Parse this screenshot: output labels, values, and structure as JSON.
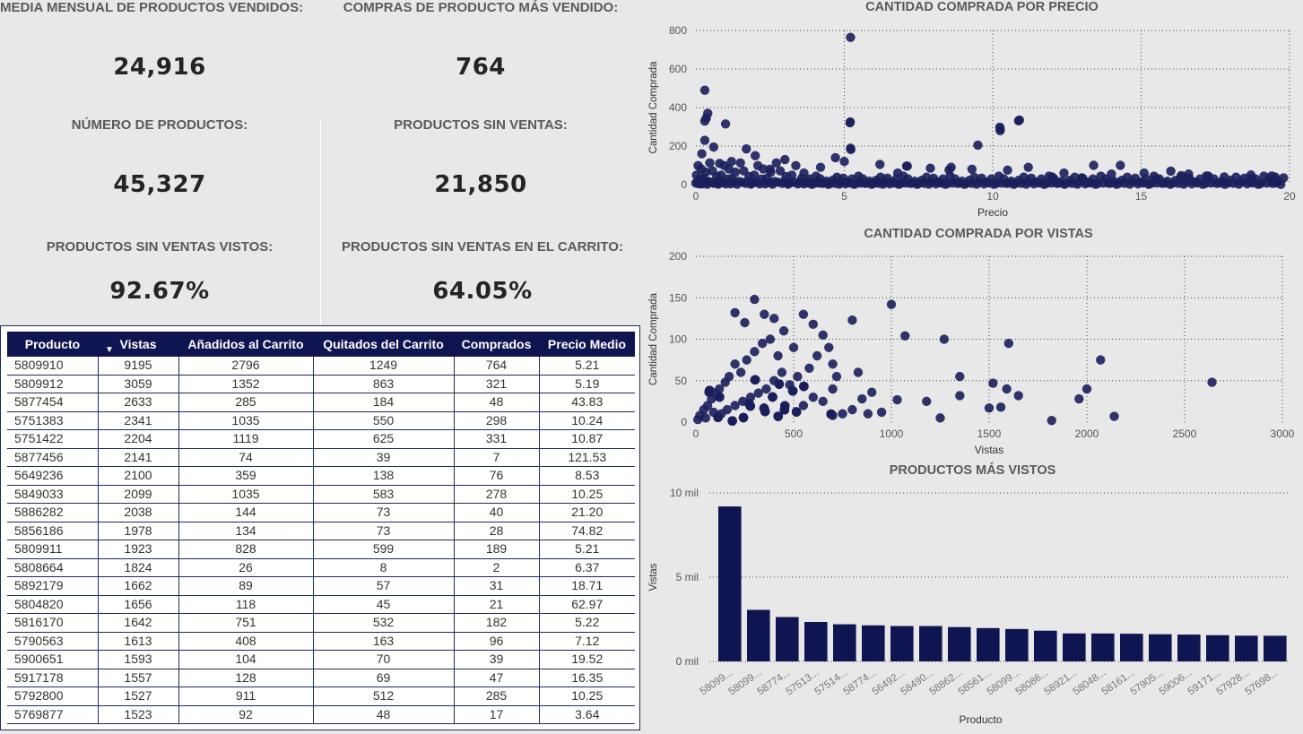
{
  "kpis": {
    "monthly_avg": {
      "label": "MEDIA MENSUAL DE PRODUCTOS VENDIDOS:",
      "value": "24,916"
    },
    "top_product_purchases": {
      "label": "COMPRAS DE PRODUCTO MÁS VENDIDO:",
      "value": "764"
    },
    "num_products": {
      "label": "NÚMERO DE PRODUCTOS:",
      "value": "45,327"
    },
    "no_sales": {
      "label": "PRODUCTOS SIN VENTAS:",
      "value": "21,850"
    },
    "no_sales_viewed": {
      "label": "PRODUCTOS SIN VENTAS VISTOS:",
      "value": "92.67%"
    },
    "no_sales_cart": {
      "label": "PRODUCTOS SIN VENTAS EN EL CARRITO:",
      "value": "64.05%"
    }
  },
  "table": {
    "headers": [
      "Producto",
      "Vistas",
      "Añadidos al Carrito",
      "Quitados del Carrito",
      "Comprados",
      "Precio Medio"
    ],
    "sort_indicator": "▼",
    "rows": [
      [
        "5809910",
        "9195",
        "2796",
        "1249",
        "764",
        "5.21"
      ],
      [
        "5809912",
        "3059",
        "1352",
        "863",
        "321",
        "5.19"
      ],
      [
        "5877454",
        "2633",
        "285",
        "184",
        "48",
        "43.83"
      ],
      [
        "5751383",
        "2341",
        "1035",
        "550",
        "298",
        "10.24"
      ],
      [
        "5751422",
        "2204",
        "1119",
        "625",
        "331",
        "10.87"
      ],
      [
        "5877456",
        "2141",
        "74",
        "39",
        "7",
        "121.53"
      ],
      [
        "5649236",
        "2100",
        "359",
        "138",
        "76",
        "8.53"
      ],
      [
        "5849033",
        "2099",
        "1035",
        "583",
        "278",
        "10.25"
      ],
      [
        "5886282",
        "2038",
        "144",
        "73",
        "40",
        "21.20"
      ],
      [
        "5856186",
        "1978",
        "134",
        "73",
        "28",
        "74.82"
      ],
      [
        "5809911",
        "1923",
        "828",
        "599",
        "189",
        "5.21"
      ],
      [
        "5808664",
        "1824",
        "26",
        "8",
        "2",
        "6.37"
      ],
      [
        "5892179",
        "1662",
        "89",
        "57",
        "31",
        "18.71"
      ],
      [
        "5804820",
        "1656",
        "118",
        "45",
        "21",
        "62.97"
      ],
      [
        "5816170",
        "1642",
        "751",
        "532",
        "182",
        "5.22"
      ],
      [
        "5790563",
        "1613",
        "408",
        "163",
        "96",
        "7.12"
      ],
      [
        "5900651",
        "1593",
        "104",
        "70",
        "39",
        "19.52"
      ],
      [
        "5917178",
        "1557",
        "128",
        "69",
        "47",
        "16.35"
      ],
      [
        "5792800",
        "1527",
        "911",
        "512",
        "285",
        "10.25"
      ],
      [
        "5769877",
        "1523",
        "92",
        "48",
        "17",
        "3.64"
      ]
    ]
  },
  "chart_data": [
    {
      "type": "scatter",
      "title": "CANTIDAD COMPRADA POR PRECIO",
      "xlabel": "Precio",
      "ylabel": "Cantidad Comprada",
      "xlim": [
        0,
        20
      ],
      "ylim": [
        0,
        800
      ],
      "xticks": [
        "0",
        "5",
        "10",
        "15",
        "20"
      ],
      "yticks": [
        "0",
        "200",
        "400",
        "600",
        "800"
      ],
      "grid": true,
      "color": "#1b1f5b",
      "points": [
        [
          5.21,
          764
        ],
        [
          0.3,
          490
        ],
        [
          0.4,
          370
        ],
        [
          0.35,
          345
        ],
        [
          0.3,
          330
        ],
        [
          1.0,
          315
        ],
        [
          5.2,
          325
        ],
        [
          9.5,
          205
        ],
        [
          10.9,
          335
        ],
        [
          10.25,
          290
        ],
        [
          10.25,
          280
        ],
        [
          5.21,
          189
        ],
        [
          0.3,
          230
        ],
        [
          1.7,
          185
        ],
        [
          0.6,
          195
        ],
        [
          0.2,
          160
        ],
        [
          2.0,
          150
        ],
        [
          3.0,
          130
        ],
        [
          4.7,
          140
        ],
        [
          5.0,
          120
        ],
        [
          6.2,
          105
        ],
        [
          7.1,
          96
        ],
        [
          7.9,
          85
        ],
        [
          8.6,
          90
        ],
        [
          9.3,
          80
        ],
        [
          10.5,
          75
        ],
        [
          11.2,
          90
        ],
        [
          12.4,
          60
        ],
        [
          13.4,
          100
        ],
        [
          14.3,
          100
        ],
        [
          14.0,
          55
        ],
        [
          15.1,
          60
        ],
        [
          16.0,
          70
        ],
        [
          16.6,
          55
        ],
        [
          17.2,
          45
        ],
        [
          17.8,
          40
        ],
        [
          18.7,
          50
        ],
        [
          19.4,
          45
        ],
        [
          19.8,
          35
        ],
        [
          3.64,
          60
        ],
        [
          2.5,
          80
        ],
        [
          1.2,
          120
        ],
        [
          0.8,
          110
        ],
        [
          4.2,
          90
        ],
        [
          6.8,
          60
        ],
        [
          8.53,
          76
        ],
        [
          12.0,
          40
        ],
        [
          13.0,
          35
        ],
        [
          15.5,
          30
        ],
        [
          16.35,
          47
        ],
        [
          18.71,
          31
        ],
        [
          19.52,
          39
        ],
        [
          5.19,
          321
        ],
        [
          10.87,
          331
        ],
        [
          10.24,
          298
        ],
        [
          7.12,
          96
        ],
        [
          5.22,
          182
        ]
      ]
    },
    {
      "type": "scatter",
      "title": "CANTIDAD COMPRADA POR VISTAS",
      "xlabel": "Vistas",
      "ylabel": "Cantidad Comprada",
      "xlim": [
        0,
        3000
      ],
      "ylim": [
        0,
        200
      ],
      "xticks": [
        "0",
        "500",
        "1000",
        "1500",
        "2000",
        "2500",
        "3000"
      ],
      "yticks": [
        "0",
        "50",
        "100",
        "150",
        "200"
      ],
      "grid": true,
      "color": "#1b1f5b",
      "points": [
        [
          300,
          148
        ],
        [
          1000,
          142
        ],
        [
          350,
          130
        ],
        [
          400,
          125
        ],
        [
          200,
          132
        ],
        [
          250,
          120
        ],
        [
          800,
          123
        ],
        [
          1270,
          100
        ],
        [
          1070,
          104
        ],
        [
          1600,
          95
        ],
        [
          2070,
          75
        ],
        [
          2000,
          40
        ],
        [
          1350,
          55
        ],
        [
          1350,
          32
        ],
        [
          1520,
          47
        ],
        [
          1590,
          40
        ],
        [
          1650,
          32
        ],
        [
          1500,
          17
        ],
        [
          1560,
          18
        ],
        [
          2140,
          7
        ],
        [
          1820,
          2
        ],
        [
          2640,
          48
        ],
        [
          1960,
          28
        ],
        [
          1180,
          25
        ],
        [
          1250,
          5
        ],
        [
          1030,
          27
        ],
        [
          900,
          36
        ],
        [
          850,
          28
        ],
        [
          800,
          15
        ],
        [
          830,
          60
        ],
        [
          700,
          70
        ],
        [
          650,
          105
        ],
        [
          600,
          118
        ],
        [
          550,
          130
        ],
        [
          500,
          90
        ],
        [
          450,
          110
        ],
        [
          420,
          80
        ],
        [
          380,
          100
        ],
        [
          340,
          95
        ],
        [
          300,
          85
        ],
        [
          260,
          75
        ],
        [
          230,
          60
        ],
        [
          200,
          70
        ],
        [
          170,
          55
        ],
        [
          150,
          48
        ],
        [
          120,
          40
        ],
        [
          100,
          35
        ],
        [
          80,
          28
        ],
        [
          60,
          20
        ],
        [
          40,
          15
        ],
        [
          20,
          8
        ],
        [
          10,
          3
        ],
        [
          700,
          40
        ],
        [
          650,
          25
        ],
        [
          600,
          30
        ],
        [
          550,
          20
        ],
        [
          750,
          10
        ],
        [
          700,
          8
        ],
        [
          950,
          12
        ],
        [
          880,
          10
        ],
        [
          720,
          55
        ],
        [
          680,
          90
        ],
        [
          620,
          80
        ],
        [
          580,
          65
        ],
        [
          520,
          55
        ],
        [
          480,
          45
        ],
        [
          440,
          60
        ],
        [
          400,
          50
        ],
        [
          360,
          40
        ],
        [
          320,
          35
        ],
        [
          280,
          30
        ],
        [
          240,
          25
        ],
        [
          200,
          20
        ],
        [
          160,
          15
        ],
        [
          130,
          10
        ],
        [
          90,
          12
        ],
        [
          50,
          5
        ]
      ]
    },
    {
      "type": "bar",
      "title": "PRODUCTOS MÁS VISTOS",
      "xlabel": "Producto",
      "ylabel": "Vistas",
      "ylim": [
        0,
        10000
      ],
      "yticks": [
        "0 mil",
        "5 mil",
        "10 mil"
      ],
      "grid": true,
      "color": "#0f1551",
      "categories": [
        "58099...",
        "58099...",
        "58774...",
        "57513...",
        "57514...",
        "58774...",
        "56492...",
        "58490...",
        "58862...",
        "58561...",
        "58099...",
        "58086...",
        "58921...",
        "58048...",
        "58161...",
        "57905...",
        "59006...",
        "59171...",
        "57928...",
        "57698..."
      ],
      "values": [
        9195,
        3059,
        2633,
        2341,
        2204,
        2141,
        2100,
        2099,
        2038,
        1978,
        1923,
        1824,
        1662,
        1656,
        1642,
        1613,
        1593,
        1557,
        1527,
        1523
      ]
    }
  ]
}
